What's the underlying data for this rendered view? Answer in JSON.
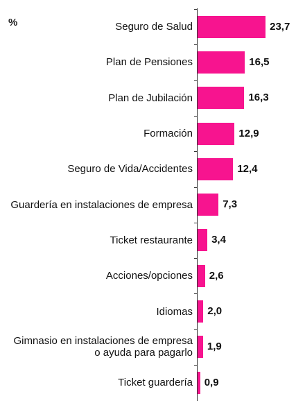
{
  "chart_data": {
    "type": "bar",
    "orientation": "horizontal",
    "unit_label": "%",
    "categories": [
      "Seguro de Salud",
      "Plan de Pensiones",
      "Plan de Jubilación",
      "Formación",
      "Seguro de Vida/Accidentes",
      "Guardería en instalaciones de empresa",
      "Ticket restaurante",
      "Acciones/opciones",
      "Idiomas",
      "Gimnasio en instalaciones de empresa o ayuda para pagarlo",
      "Ticket guardería"
    ],
    "values": [
      23.7,
      16.5,
      16.3,
      12.9,
      12.4,
      7.3,
      3.4,
      2.6,
      2.0,
      1.9,
      0.9
    ],
    "value_labels": [
      "23,7",
      "16,5",
      "16,3",
      "12,9",
      "12,4",
      "7,3",
      "3,4",
      "2,6",
      "2,0",
      "1,9",
      "0,9"
    ],
    "color": "#f7148f"
  }
}
